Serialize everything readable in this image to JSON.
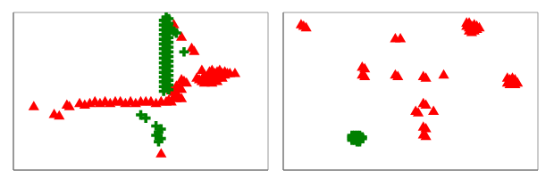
{
  "chart_data": [
    {
      "type": "scatter",
      "xlim": [
        0,
        1
      ],
      "ylim": [
        0,
        1
      ],
      "grid": false,
      "tick_labels": false,
      "series": [
        {
          "color": "#ff0000",
          "marker": "triangle",
          "values": [
            [
              0.63,
              0.92
            ],
            [
              0.6,
              0.91
            ],
            [
              0.66,
              0.84
            ],
            [
              0.7,
              0.77
            ],
            [
              0.71,
              0.75
            ],
            [
              0.74,
              0.63
            ],
            [
              0.77,
              0.62
            ],
            [
              0.78,
              0.63
            ],
            [
              0.79,
              0.61
            ],
            [
              0.8,
              0.62
            ],
            [
              0.81,
              0.63
            ],
            [
              0.82,
              0.61
            ],
            [
              0.83,
              0.62
            ],
            [
              0.84,
              0.61
            ],
            [
              0.75,
              0.6
            ],
            [
              0.76,
              0.59
            ],
            [
              0.78,
              0.6
            ],
            [
              0.79,
              0.59
            ],
            [
              0.8,
              0.58
            ],
            [
              0.81,
              0.59
            ],
            [
              0.82,
              0.58
            ],
            [
              0.83,
              0.6
            ],
            [
              0.85,
              0.61
            ],
            [
              0.72,
              0.58
            ],
            [
              0.73,
              0.57
            ],
            [
              0.74,
              0.56
            ],
            [
              0.75,
              0.55
            ],
            [
              0.76,
              0.57
            ],
            [
              0.77,
              0.56
            ],
            [
              0.78,
              0.55
            ],
            [
              0.8,
              0.56
            ],
            [
              0.66,
              0.57
            ],
            [
              0.67,
              0.56
            ],
            [
              0.68,
              0.55
            ],
            [
              0.64,
              0.53
            ],
            [
              0.65,
              0.52
            ],
            [
              0.66,
              0.51
            ],
            [
              0.62,
              0.5
            ],
            [
              0.63,
              0.49
            ],
            [
              0.64,
              0.48
            ],
            [
              0.63,
              0.46
            ],
            [
              0.64,
              0.45
            ],
            [
              0.65,
              0.46
            ],
            [
              0.66,
              0.45
            ],
            [
              0.61,
              0.44
            ],
            [
              0.62,
              0.43
            ],
            [
              0.6,
              0.43
            ],
            [
              0.58,
              0.43
            ],
            [
              0.56,
              0.42
            ],
            [
              0.54,
              0.43
            ],
            [
              0.52,
              0.43
            ],
            [
              0.5,
              0.43
            ],
            [
              0.48,
              0.42
            ],
            [
              0.46,
              0.43
            ],
            [
              0.44,
              0.42
            ],
            [
              0.42,
              0.43
            ],
            [
              0.4,
              0.43
            ],
            [
              0.38,
              0.42
            ],
            [
              0.36,
              0.43
            ],
            [
              0.34,
              0.42
            ],
            [
              0.32,
              0.43
            ],
            [
              0.3,
              0.42
            ],
            [
              0.28,
              0.41
            ],
            [
              0.26,
              0.42
            ],
            [
              0.21,
              0.41
            ],
            [
              0.22,
              0.4
            ],
            [
              0.08,
              0.4
            ],
            [
              0.16,
              0.35
            ],
            [
              0.18,
              0.34
            ],
            [
              0.58,
              0.1
            ],
            [
              0.87,
              0.61
            ]
          ]
        },
        {
          "color": "#008000",
          "marker": "plus",
          "values": [
            [
              0.6,
              0.97
            ],
            [
              0.61,
              0.96
            ],
            [
              0.59,
              0.95
            ],
            [
              0.6,
              0.94
            ],
            [
              0.61,
              0.93
            ],
            [
              0.59,
              0.92
            ],
            [
              0.6,
              0.91
            ],
            [
              0.61,
              0.9
            ],
            [
              0.59,
              0.89
            ],
            [
              0.6,
              0.88
            ],
            [
              0.61,
              0.87
            ],
            [
              0.59,
              0.86
            ],
            [
              0.6,
              0.85
            ],
            [
              0.61,
              0.84
            ],
            [
              0.59,
              0.83
            ],
            [
              0.6,
              0.82
            ],
            [
              0.61,
              0.81
            ],
            [
              0.59,
              0.8
            ],
            [
              0.6,
              0.79
            ],
            [
              0.61,
              0.78
            ],
            [
              0.59,
              0.77
            ],
            [
              0.6,
              0.76
            ],
            [
              0.61,
              0.75
            ],
            [
              0.59,
              0.74
            ],
            [
              0.6,
              0.73
            ],
            [
              0.61,
              0.72
            ],
            [
              0.59,
              0.71
            ],
            [
              0.6,
              0.7
            ],
            [
              0.61,
              0.69
            ],
            [
              0.59,
              0.68
            ],
            [
              0.6,
              0.67
            ],
            [
              0.61,
              0.66
            ],
            [
              0.59,
              0.65
            ],
            [
              0.6,
              0.64
            ],
            [
              0.61,
              0.63
            ],
            [
              0.59,
              0.62
            ],
            [
              0.6,
              0.61
            ],
            [
              0.61,
              0.6
            ],
            [
              0.59,
              0.59
            ],
            [
              0.6,
              0.58
            ],
            [
              0.61,
              0.57
            ],
            [
              0.59,
              0.56
            ],
            [
              0.6,
              0.55
            ],
            [
              0.61,
              0.54
            ],
            [
              0.59,
              0.53
            ],
            [
              0.6,
              0.52
            ],
            [
              0.61,
              0.51
            ],
            [
              0.59,
              0.5
            ],
            [
              0.62,
              0.89
            ],
            [
              0.63,
              0.88
            ],
            [
              0.64,
              0.87
            ],
            [
              0.67,
              0.75
            ],
            [
              0.56,
              0.28
            ],
            [
              0.58,
              0.26
            ],
            [
              0.57,
              0.24
            ],
            [
              0.56,
              0.22
            ],
            [
              0.58,
              0.2
            ],
            [
              0.57,
              0.18
            ],
            [
              0.5,
              0.35
            ],
            [
              0.52,
              0.33
            ]
          ]
        }
      ]
    },
    {
      "type": "scatter",
      "xlim": [
        0,
        1
      ],
      "ylim": [
        0,
        1
      ],
      "grid": false,
      "tick_labels": false,
      "series": [
        {
          "color": "#ff0000",
          "marker": "triangle",
          "values": [
            [
              0.07,
              0.92
            ],
            [
              0.08,
              0.91
            ],
            [
              0.09,
              0.9
            ],
            [
              0.44,
              0.83
            ],
            [
              0.46,
              0.83
            ],
            [
              0.72,
              0.93
            ],
            [
              0.73,
              0.93
            ],
            [
              0.75,
              0.92
            ],
            [
              0.74,
              0.91
            ],
            [
              0.76,
              0.91
            ],
            [
              0.74,
              0.9
            ],
            [
              0.75,
              0.89
            ],
            [
              0.73,
              0.9
            ],
            [
              0.76,
              0.89
            ],
            [
              0.72,
              0.91
            ],
            [
              0.77,
              0.9
            ],
            [
              0.73,
              0.88
            ],
            [
              0.75,
              0.88
            ],
            [
              0.74,
              0.87
            ],
            [
              0.31,
              0.65
            ],
            [
              0.32,
              0.64
            ],
            [
              0.31,
              0.6
            ],
            [
              0.32,
              0.59
            ],
            [
              0.44,
              0.6
            ],
            [
              0.45,
              0.59
            ],
            [
              0.55,
              0.59
            ],
            [
              0.56,
              0.58
            ],
            [
              0.63,
              0.6
            ],
            [
              0.88,
              0.58
            ],
            [
              0.89,
              0.57
            ],
            [
              0.9,
              0.58
            ],
            [
              0.91,
              0.57
            ],
            [
              0.89,
              0.56
            ],
            [
              0.9,
              0.55
            ],
            [
              0.91,
              0.56
            ],
            [
              0.92,
              0.55
            ],
            [
              0.88,
              0.55
            ],
            [
              0.89,
              0.54
            ],
            [
              0.9,
              0.54
            ],
            [
              0.91,
              0.54
            ],
            [
              0.55,
              0.42
            ],
            [
              0.56,
              0.41
            ],
            [
              0.52,
              0.37
            ],
            [
              0.53,
              0.36
            ],
            [
              0.59,
              0.37
            ],
            [
              0.55,
              0.27
            ],
            [
              0.56,
              0.26
            ],
            [
              0.55,
              0.22
            ],
            [
              0.56,
              0.21
            ]
          ]
        },
        {
          "color": "#008000",
          "marker": "plus",
          "values": [
            [
              0.27,
              0.22
            ],
            [
              0.28,
              0.21
            ],
            [
              0.29,
              0.2
            ],
            [
              0.3,
              0.21
            ],
            [
              0.28,
              0.2
            ],
            [
              0.27,
              0.19
            ],
            [
              0.29,
              0.19
            ],
            [
              0.3,
              0.2
            ],
            [
              0.28,
              0.22
            ],
            [
              0.29,
              0.22
            ],
            [
              0.27,
              0.21
            ],
            [
              0.3,
              0.22
            ],
            [
              0.28,
              0.19
            ],
            [
              0.29,
              0.18
            ],
            [
              0.3,
              0.19
            ],
            [
              0.27,
              0.2
            ],
            [
              0.31,
              0.21
            ],
            [
              0.31,
              0.2
            ],
            [
              0.3,
              0.18
            ]
          ]
        }
      ]
    }
  ]
}
